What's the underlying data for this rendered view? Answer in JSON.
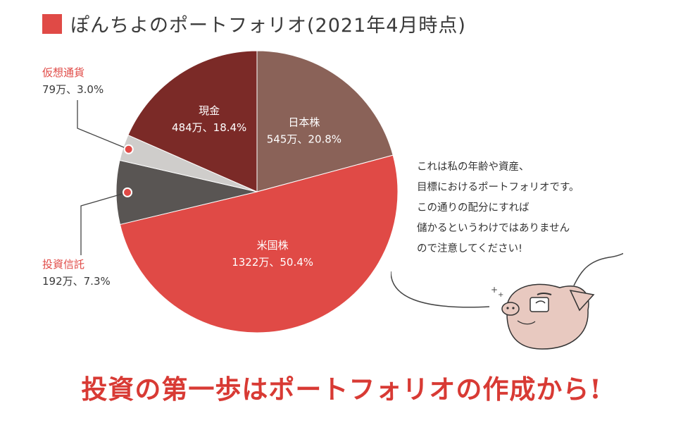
{
  "title": "ぽんちよのポートフォリオ(2021年4月時点)",
  "chart_data": {
    "type": "pie",
    "title": "ぽんちよのポートフォリオ(2021年4月時点)",
    "slices": [
      {
        "name": "日本株",
        "value_label": "545万、20.8%",
        "amount_man_yen": 545,
        "percent": 20.8,
        "color": "#8a6258"
      },
      {
        "name": "米国株",
        "value_label": "1322万、50.4%",
        "amount_man_yen": 1322,
        "percent": 50.4,
        "color": "#e04a46"
      },
      {
        "name": "投資信託",
        "value_label": "192万、7.3%",
        "amount_man_yen": 192,
        "percent": 7.3,
        "color": "#595553"
      },
      {
        "name": "仮想通貨",
        "value_label": "79万、3.0%",
        "amount_man_yen": 79,
        "percent": 3.0,
        "color": "#cfcdcb"
      },
      {
        "name": "現金",
        "value_label": "484万、18.4%",
        "amount_man_yen": 484,
        "percent": 18.4,
        "color": "#7b2a27"
      }
    ]
  },
  "note_lines": [
    "これは私の年齢や資産、",
    "目標におけるポートフォリオです。",
    "この通りの配分にすれば",
    "儲かるというわけではありません",
    "ので注意してください!"
  ],
  "tagline": "投資の第一歩はポートフォリオの作成から!",
  "colors": {
    "accent": "#e04a46",
    "text": "#3a3a3a"
  }
}
